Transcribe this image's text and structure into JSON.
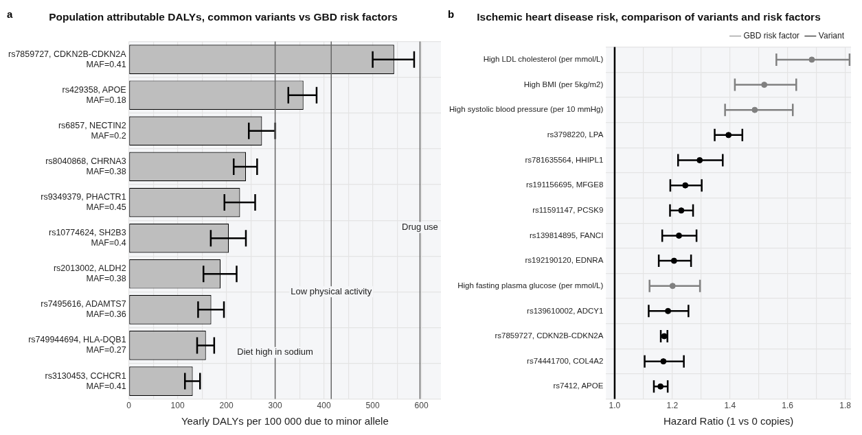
{
  "chart_data": [
    {
      "type": "bar",
      "orientation": "horizontal",
      "title": "Population attributable DALYs, common variants vs GBD risk factors",
      "xlabel": "Yearly DALYs per 100 000 due to minor allele",
      "annotations": [
        "a"
      ],
      "categories": [
        "rs7859727, CDKN2B-CDKN2A\nMAF=0.41",
        "rs429358, APOE\nMAF=0.18",
        "rs6857, NECTIN2\nMAF=0.2",
        "rs8040868, CHRNA3\nMAF=0.38",
        "rs9349379, PHACTR1\nMAF=0.45",
        "rs10774624, SH2B3\nMAF=0.4",
        "rs2013002, ALDH2\nMAF=0.38",
        "rs7495616, ADAMTS7\nMAF=0.36",
        "rs749944694, HLA-DQB1\nMAF=0.27",
        "rs3130453, CCHCR1\nMAF=0.41"
      ],
      "values": [
        544,
        358,
        273,
        240,
        228,
        205,
        188,
        169,
        158,
        131
      ],
      "errors": [
        [
          500,
          585
        ],
        [
          327,
          385
        ],
        [
          246,
          300
        ],
        [
          215,
          263
        ],
        [
          196,
          259
        ],
        [
          168,
          240
        ],
        [
          153,
          221
        ],
        [
          142,
          195
        ],
        [
          140,
          175
        ],
        [
          115,
          146
        ]
      ],
      "color": "#bebebe",
      "xlim": [
        0,
        640
      ],
      "xticks": [
        0,
        {
          "value": 50,
          "label": null
        },
        100,
        {
          "value": 150,
          "label": null
        },
        200,
        {
          "value": 250,
          "label": null
        },
        300,
        {
          "value": 350,
          "label": null
        },
        400,
        {
          "value": 450,
          "label": null
        },
        500,
        {
          "value": 550,
          "label": null
        },
        600
      ],
      "grid": true,
      "ref_lines": [
        {
          "axis": "x",
          "value": 300,
          "label": "Diet high in sodium",
          "color": "#666666"
        },
        {
          "axis": "x",
          "value": 415,
          "label": "Low physical activity",
          "color": "#666666"
        },
        {
          "axis": "x",
          "value": 597,
          "label": "Drug use",
          "color": "#666666"
        }
      ]
    },
    {
      "type": "scatter",
      "orientation": "horizontal",
      "title": "Ischemic heart disease risk, comparison of variants and risk factors",
      "xlabel": "Hazard Ratio (1 vs 0 copies)",
      "annotations": [
        "b"
      ],
      "categories": [
        "High LDL cholesterol (per mmol/L)",
        "High BMI (per 5kg/m2)",
        "High systolic blood pressure (per 10 mmHg)",
        "rs3798220, LPA",
        "rs781635564, HHIPL1",
        "rs191156695, MFGE8",
        "rs11591147, PCSK9",
        "rs139814895, FANCI",
        "rs192190120, EDNRA",
        "High fasting plasma glucose (per mmol/L)",
        "rs139610002, ADCY1",
        "rs7859727, CDKN2B-CDKN2A",
        "rs74441700, COL4A2",
        "rs7412, APOE"
      ],
      "series": [
        {
          "name": "GBD risk factor",
          "color": "#808080",
          "values": [
            1.684,
            1.519,
            1.486,
            null,
            null,
            null,
            null,
            null,
            null,
            1.201,
            null,
            null,
            null,
            null
          ],
          "errors": [
            [
              1.561,
              1.815
            ],
            [
              1.417,
              1.63
            ],
            [
              1.383,
              1.618
            ],
            null,
            null,
            null,
            null,
            null,
            null,
            [
              1.121,
              1.296
            ],
            null,
            null,
            null,
            null
          ]
        },
        {
          "name": "Variant",
          "color": "#000000",
          "values": [
            null,
            null,
            null,
            1.395,
            1.295,
            1.245,
            1.231,
            1.223,
            1.206,
            null,
            1.185,
            1.172,
            1.169,
            1.159
          ],
          "errors": [
            null,
            null,
            null,
            [
              1.347,
              1.443
            ],
            [
              1.22,
              1.375
            ],
            [
              1.193,
              1.302
            ],
            [
              1.192,
              1.272
            ],
            [
              1.165,
              1.284
            ],
            [
              1.153,
              1.265
            ],
            null,
            [
              1.118,
              1.256
            ],
            [
              1.16,
              1.183
            ],
            [
              1.104,
              1.24
            ],
            [
              1.136,
              1.184
            ]
          ]
        }
      ],
      "xlim": [
        0.97,
        1.82
      ],
      "xticks": [
        {
          "value": 1,
          "label": "1.0"
        },
        {
          "value": 1.1,
          "label": null
        },
        1.2,
        {
          "value": 1.3,
          "label": null
        },
        1.4,
        {
          "value": 1.5,
          "label": null
        },
        1.6,
        {
          "value": 1.7,
          "label": null
        },
        1.8
      ],
      "grid": true,
      "legend": "top right",
      "marker": "circle",
      "ref_lines": [
        {
          "axis": "x",
          "value": 1,
          "color": "#000000"
        }
      ]
    }
  ]
}
